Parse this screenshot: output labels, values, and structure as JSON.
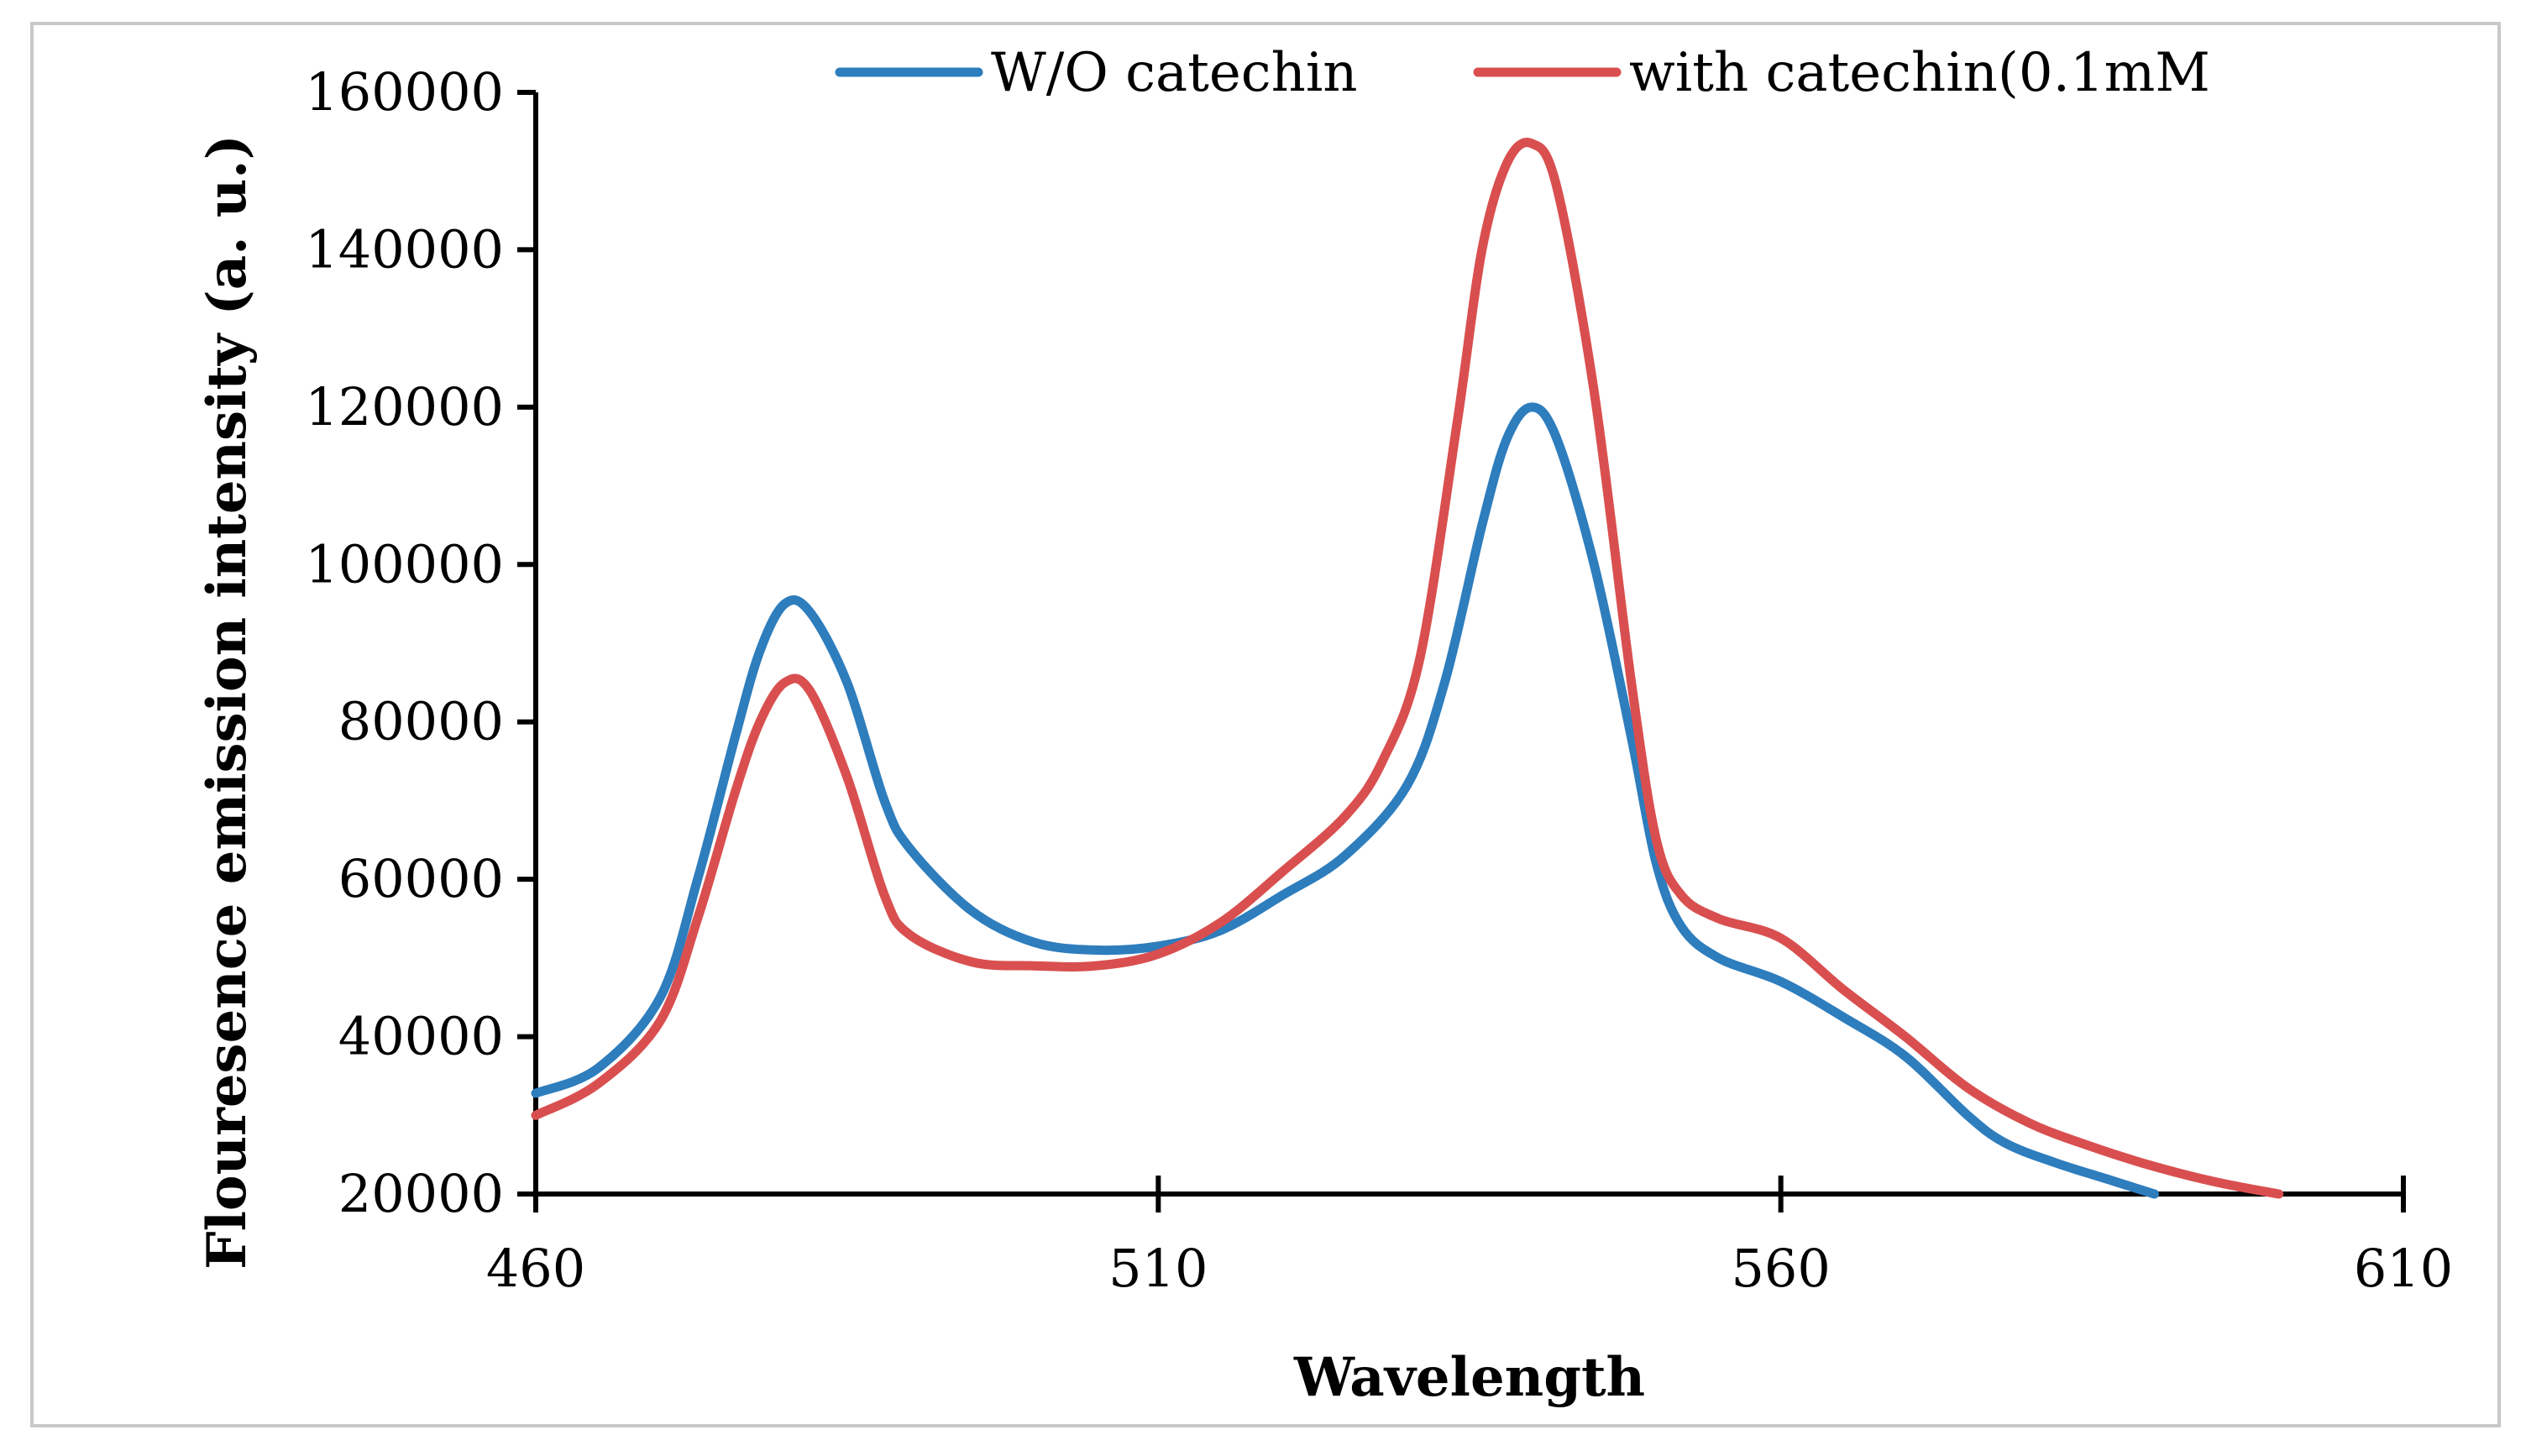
{
  "chart_data": {
    "type": "line",
    "title": "",
    "xlabel": "Wavelength",
    "ylabel": "Flouresence emission intensity (a. u.)",
    "xlim": [
      460,
      610
    ],
    "ylim": [
      20000,
      160000
    ],
    "xticks": [
      460,
      510,
      560,
      610
    ],
    "yticks": [
      20000,
      40000,
      60000,
      80000,
      100000,
      120000,
      140000,
      160000
    ],
    "x_tick_labels": [
      "460",
      "510",
      "560",
      "610"
    ],
    "y_tick_labels": [
      "20000",
      "40000",
      "60000",
      "80000",
      "100000",
      "120000",
      "140000",
      "160000"
    ],
    "grid": false,
    "legend_position": "top",
    "series": [
      {
        "name": "W/O catechin",
        "color": "#2e7dbd",
        "points": [
          [
            460,
            32800
          ],
          [
            465,
            36000
          ],
          [
            470,
            45000
          ],
          [
            473,
            60000
          ],
          [
            476,
            78000
          ],
          [
            478,
            89000
          ],
          [
            480,
            95000
          ],
          [
            482,
            94000
          ],
          [
            485,
            85000
          ],
          [
            488,
            70000
          ],
          [
            490,
            64000
          ],
          [
            495,
            56000
          ],
          [
            500,
            52000
          ],
          [
            505,
            51000
          ],
          [
            510,
            51500
          ],
          [
            515,
            53500
          ],
          [
            520,
            58000
          ],
          [
            525,
            63000
          ],
          [
            530,
            72000
          ],
          [
            533,
            85000
          ],
          [
            536,
            105000
          ],
          [
            538,
            116000
          ],
          [
            540,
            120000
          ],
          [
            542,
            116000
          ],
          [
            545,
            100000
          ],
          [
            548,
            78000
          ],
          [
            550,
            62000
          ],
          [
            552,
            54000
          ],
          [
            555,
            50000
          ],
          [
            560,
            47000
          ],
          [
            565,
            42500
          ],
          [
            570,
            37500
          ],
          [
            575,
            30000
          ],
          [
            578,
            26500
          ],
          [
            582,
            24000
          ],
          [
            586,
            22000
          ],
          [
            590,
            20000
          ]
        ]
      },
      {
        "name": "with catechin(0.1mM",
        "color": "#d94f4f",
        "points": [
          [
            460,
            30000
          ],
          [
            465,
            34000
          ],
          [
            470,
            42000
          ],
          [
            473,
            55000
          ],
          [
            476,
            71000
          ],
          [
            478,
            80000
          ],
          [
            480,
            85000
          ],
          [
            482,
            84000
          ],
          [
            485,
            73000
          ],
          [
            488,
            58000
          ],
          [
            490,
            53000
          ],
          [
            495,
            49500
          ],
          [
            500,
            49000
          ],
          [
            505,
            49000
          ],
          [
            510,
            50500
          ],
          [
            515,
            54500
          ],
          [
            520,
            61000
          ],
          [
            525,
            68000
          ],
          [
            528,
            75000
          ],
          [
            531,
            88000
          ],
          [
            534,
            118000
          ],
          [
            536,
            140000
          ],
          [
            538,
            151000
          ],
          [
            540,
            153500
          ],
          [
            542,
            148000
          ],
          [
            545,
            122000
          ],
          [
            548,
            85000
          ],
          [
            550,
            65000
          ],
          [
            552,
            58000
          ],
          [
            555,
            55000
          ],
          [
            560,
            52500
          ],
          [
            565,
            46000
          ],
          [
            570,
            40000
          ],
          [
            575,
            33500
          ],
          [
            580,
            29000
          ],
          [
            585,
            26000
          ],
          [
            590,
            23500
          ],
          [
            595,
            21500
          ],
          [
            600,
            20000
          ]
        ]
      }
    ]
  }
}
